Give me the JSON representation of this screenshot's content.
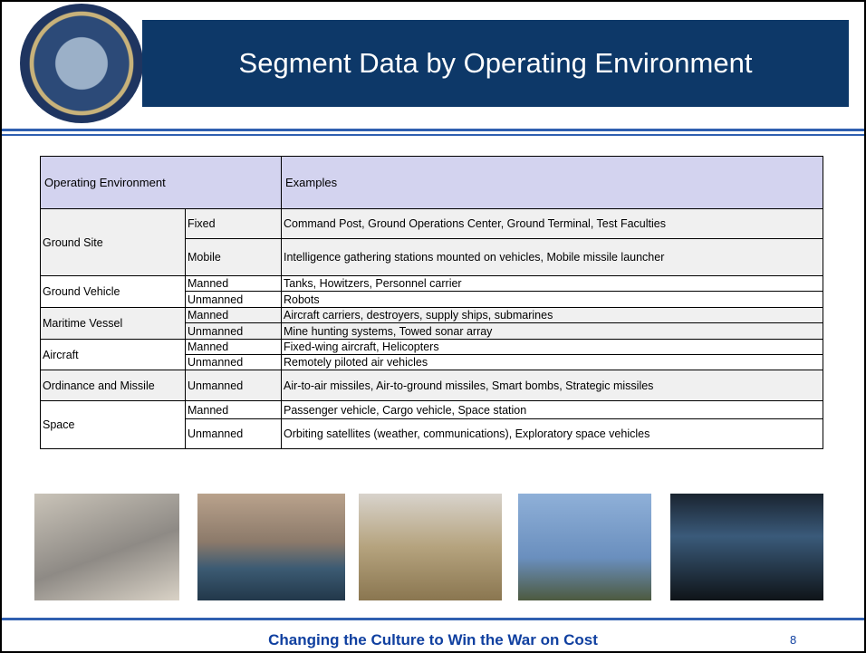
{
  "header": {
    "title": "Segment Data by Operating Environment"
  },
  "table": {
    "columns": [
      "Operating Environment",
      "Examples"
    ],
    "groups": [
      {
        "name": "Ground Site",
        "rows": [
          {
            "type": "Fixed",
            "examples": "Command Post, Ground Operations Center, Ground Terminal, Test Faculties"
          },
          {
            "type": "Mobile",
            "examples": "Intelligence gathering stations mounted on vehicles, Mobile missile launcher"
          }
        ]
      },
      {
        "name": "Ground Vehicle",
        "rows": [
          {
            "type": "Manned",
            "examples": "Tanks, Howitzers, Personnel carrier"
          },
          {
            "type": "Unmanned",
            "examples": "Robots"
          }
        ]
      },
      {
        "name": "Maritime Vessel",
        "rows": [
          {
            "type": "Manned",
            "examples": "Aircraft carriers, destroyers, supply ships, submarines"
          },
          {
            "type": "Unmanned",
            "examples": "Mine hunting systems, Towed sonar array"
          }
        ]
      },
      {
        "name": "Aircraft",
        "rows": [
          {
            "type": "Manned",
            "examples": "Fixed-wing aircraft, Helicopters"
          },
          {
            "type": "Unmanned",
            "examples": "Remotely piloted air vehicles"
          }
        ]
      },
      {
        "name": "Ordinance and Missile",
        "rows": [
          {
            "type": "Unmanned",
            "examples": "Air-to-air missiles, Air-to-ground missiles, Smart bombs, Strategic missiles"
          }
        ]
      },
      {
        "name": "Space",
        "rows": [
          {
            "type": "Manned",
            "examples": "Passenger vehicle, Cargo vehicle, Space station"
          },
          {
            "type": "Unmanned",
            "examples": "Orbiting satellites (weather, communications), Exploratory space vehicles"
          }
        ]
      }
    ]
  },
  "footer": {
    "text": "Changing the Culture to Win the War on Cost",
    "page": "8"
  }
}
